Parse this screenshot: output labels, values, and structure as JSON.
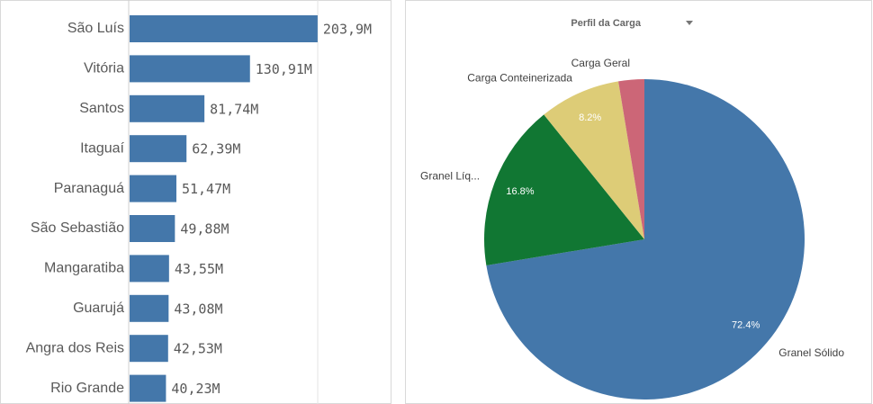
{
  "chart_data": [
    {
      "type": "bar",
      "orientation": "horizontal",
      "categories": [
        "São Luís",
        "Vitória",
        "Santos",
        "Itaguaí",
        "Paranaguá",
        "São Sebastião",
        "Mangaratiba",
        "Guarujá",
        "Angra dos Reis",
        "Rio Grande"
      ],
      "values": [
        203.9,
        130.91,
        81.74,
        62.39,
        51.47,
        49.88,
        43.55,
        43.08,
        42.53,
        40.23
      ],
      "value_labels": [
        "203,9M",
        "130,91M",
        "81,74M",
        "62,39M",
        "51,47M",
        "49,88M",
        "43,55M",
        "43,08M",
        "42,53M",
        "40,23M"
      ],
      "color": "#4477aa",
      "xlim": [
        0,
        204
      ]
    },
    {
      "type": "pie",
      "title": "Perfil da Carga",
      "categories": [
        "Granel Sólido",
        "Granel Líq...",
        "Carga Conteinerizada",
        "Carga Geral"
      ],
      "values": [
        72.4,
        16.8,
        8.2,
        2.6
      ],
      "value_labels": [
        "72.4%",
        "16.8%",
        "8.2%",
        null
      ],
      "colors": [
        "#4477aa",
        "#117733",
        "#ddcc77",
        "#cc6677"
      ]
    }
  ]
}
